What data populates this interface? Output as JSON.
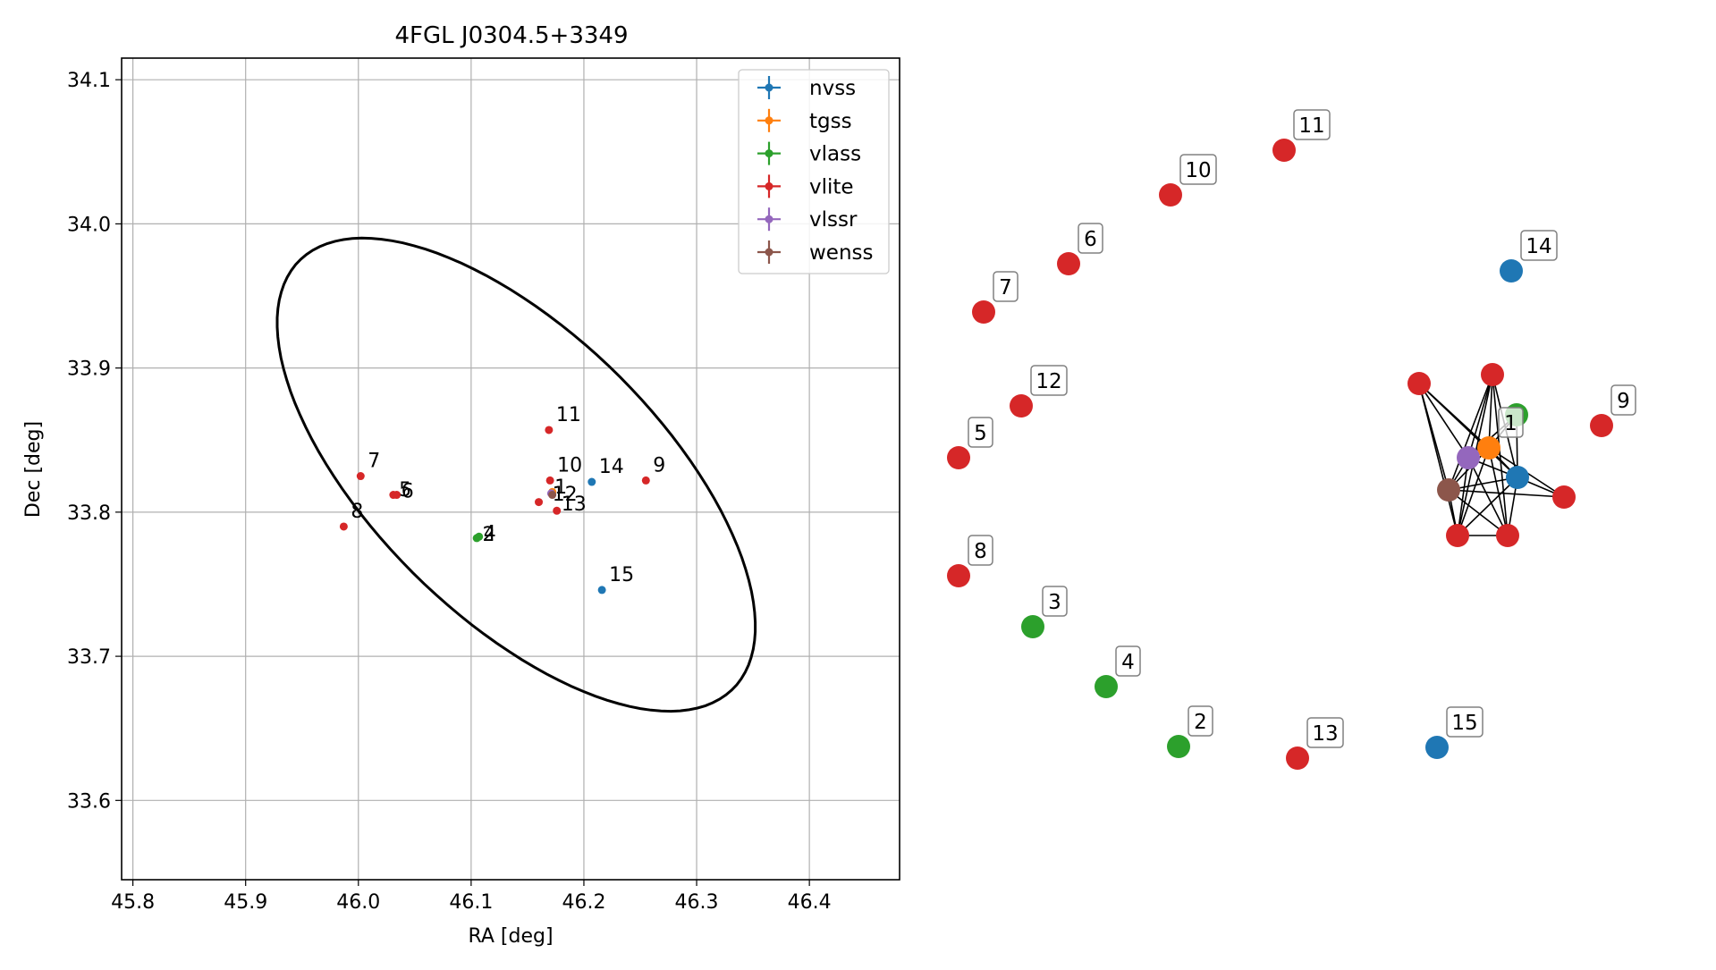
{
  "chart_data": [
    {
      "type": "scatter",
      "title": "4FGL J0304.5+3349",
      "xlabel": "RA [deg]",
      "ylabel": "Dec [deg]",
      "xlim": [
        45.79,
        46.48
      ],
      "ylim": [
        33.545,
        34.115
      ],
      "xticks": [
        45.8,
        45.9,
        46.0,
        46.1,
        46.2,
        46.3,
        46.4
      ],
      "yticks": [
        33.6,
        33.7,
        33.8,
        33.9,
        34.0,
        34.1
      ],
      "grid": true,
      "legend_position": "top-right",
      "series": [
        {
          "name": "nvss",
          "color": "#1f77b4"
        },
        {
          "name": "tgss",
          "color": "#ff7f0e"
        },
        {
          "name": "vlass",
          "color": "#2ca02c"
        },
        {
          "name": "vlite",
          "color": "#d62728"
        },
        {
          "name": "vlssr",
          "color": "#9467bd"
        },
        {
          "name": "wenss",
          "color": "#8c564b"
        }
      ],
      "points": [
        {
          "survey": "vlite",
          "ra": 46.17,
          "dec": 33.822,
          "label": "10"
        },
        {
          "survey": "vlite",
          "ra": 46.169,
          "dec": 33.857,
          "label": "11"
        },
        {
          "survey": "vlite",
          "ra": 46.16,
          "dec": 33.807,
          "label": ""
        },
        {
          "survey": "vlite",
          "ra": 46.176,
          "dec": 33.801,
          "label": ""
        },
        {
          "survey": "vlite",
          "ra": 46.255,
          "dec": 33.822,
          "label": "9"
        },
        {
          "survey": "vlite",
          "ra": 46.002,
          "dec": 33.825,
          "label": "7"
        },
        {
          "survey": "vlite",
          "ra": 46.031,
          "dec": 33.812,
          "label": ""
        },
        {
          "survey": "vlite",
          "ra": 46.034,
          "dec": 33.812,
          "label": ""
        },
        {
          "survey": "vlite",
          "ra": 45.987,
          "dec": 33.79,
          "label": "8"
        },
        {
          "survey": "vlass",
          "ra": 46.105,
          "dec": 33.782,
          "label": ""
        },
        {
          "survey": "vlass",
          "ra": 46.107,
          "dec": 33.783,
          "label": ""
        },
        {
          "survey": "nvss",
          "ra": 46.207,
          "dec": 33.821,
          "label": "14"
        },
        {
          "survey": "nvss",
          "ra": 46.216,
          "dec": 33.746,
          "label": "15"
        },
        {
          "survey": "tgss",
          "ra": 46.172,
          "dec": 33.814,
          "label": ""
        },
        {
          "survey": "vlssr",
          "ra": 46.171,
          "dec": 33.813,
          "label": ""
        },
        {
          "survey": "wenss",
          "ra": 46.172,
          "dec": 33.812,
          "label": ""
        }
      ],
      "overlapping_labels": [
        {
          "text": "5",
          "ra": 46.036,
          "dec": 33.816
        },
        {
          "text": "6",
          "ra": 46.038,
          "dec": 33.815
        },
        {
          "text": "2",
          "ra": 46.11,
          "dec": 33.785
        },
        {
          "text": "4",
          "ra": 46.111,
          "dec": 33.786
        },
        {
          "text": "1",
          "ra": 46.174,
          "dec": 33.818
        },
        {
          "text": "12",
          "ra": 46.172,
          "dec": 33.813
        },
        {
          "text": "13",
          "ra": 46.18,
          "dec": 33.806
        }
      ],
      "ellipse": {
        "center_ra": 46.14,
        "center_dec": 33.826,
        "semi_major_deg": 0.245,
        "semi_minor_deg": 0.109,
        "orientation_deg": -34
      }
    },
    {
      "type": "network",
      "nodes": [
        {
          "id": "1",
          "survey": "tgss",
          "labeled": true
        },
        {
          "id": "2",
          "survey": "vlass",
          "labeled": true
        },
        {
          "id": "3",
          "survey": "vlass",
          "labeled": true
        },
        {
          "id": "4",
          "survey": "vlass",
          "labeled": true
        },
        {
          "id": "5",
          "survey": "vlite",
          "labeled": true
        },
        {
          "id": "6",
          "survey": "vlite",
          "labeled": true
        },
        {
          "id": "7",
          "survey": "vlite",
          "labeled": true
        },
        {
          "id": "8",
          "survey": "vlite",
          "labeled": true
        },
        {
          "id": "9",
          "survey": "vlite",
          "labeled": true
        },
        {
          "id": "10",
          "survey": "vlite",
          "labeled": true
        },
        {
          "id": "11",
          "survey": "vlite",
          "labeled": true
        },
        {
          "id": "12",
          "survey": "vlite",
          "labeled": true
        },
        {
          "id": "13",
          "survey": "vlite",
          "labeled": true
        },
        {
          "id": "14",
          "survey": "nvss",
          "labeled": true
        },
        {
          "id": "15",
          "survey": "nvss",
          "labeled": true
        },
        {
          "id": "c-vlite-a",
          "survey": "vlite",
          "labeled": false
        },
        {
          "id": "c-vlite-b",
          "survey": "vlite",
          "labeled": false
        },
        {
          "id": "c-vlite-c",
          "survey": "vlite",
          "labeled": false
        },
        {
          "id": "c-vlite-d",
          "survey": "vlite",
          "labeled": false
        },
        {
          "id": "c-vlite-e",
          "survey": "vlite",
          "labeled": false
        },
        {
          "id": "c-vlass",
          "survey": "vlass",
          "labeled": false
        },
        {
          "id": "c-nvss",
          "survey": "nvss",
          "labeled": false
        },
        {
          "id": "c-vlssr",
          "survey": "vlssr",
          "labeled": false
        },
        {
          "id": "c-wenss",
          "survey": "wenss",
          "labeled": false
        }
      ],
      "edges": [
        [
          "c-vlite-a",
          "1"
        ],
        [
          "c-vlite-a",
          "c-nvss"
        ],
        [
          "c-vlite-a",
          "c-vlssr"
        ],
        [
          "c-vlite-a",
          "c-wenss"
        ],
        [
          "c-vlite-a",
          "c-vlite-d"
        ],
        [
          "c-vlite-b",
          "1"
        ],
        [
          "c-vlite-b",
          "c-nvss"
        ],
        [
          "c-vlite-b",
          "c-vlssr"
        ],
        [
          "c-vlite-b",
          "c-wenss"
        ],
        [
          "c-vlite-b",
          "c-vlite-d"
        ],
        [
          "c-vlite-b",
          "c-vlite-e"
        ],
        [
          "c-vlass",
          "1"
        ],
        [
          "c-vlass",
          "c-nvss"
        ],
        [
          "c-vlass",
          "c-vlssr"
        ],
        [
          "1",
          "c-nvss"
        ],
        [
          "1",
          "c-vlssr"
        ],
        [
          "1",
          "c-wenss"
        ],
        [
          "1",
          "c-vlite-c"
        ],
        [
          "1",
          "c-vlite-d"
        ],
        [
          "1",
          "c-vlite-e"
        ],
        [
          "c-vlssr",
          "c-wenss"
        ],
        [
          "c-vlssr",
          "c-nvss"
        ],
        [
          "c-vlssr",
          "c-vlite-d"
        ],
        [
          "c-vlssr",
          "c-vlite-e"
        ],
        [
          "c-nvss",
          "c-wenss"
        ],
        [
          "c-nvss",
          "c-vlite-c"
        ],
        [
          "c-nvss",
          "c-vlite-d"
        ],
        [
          "c-nvss",
          "c-vlite-e"
        ],
        [
          "c-wenss",
          "c-vlite-d"
        ],
        [
          "c-wenss",
          "c-vlite-e"
        ],
        [
          "c-wenss",
          "c-vlite-c"
        ],
        [
          "c-vlite-d",
          "c-vlite-e"
        ]
      ]
    }
  ]
}
